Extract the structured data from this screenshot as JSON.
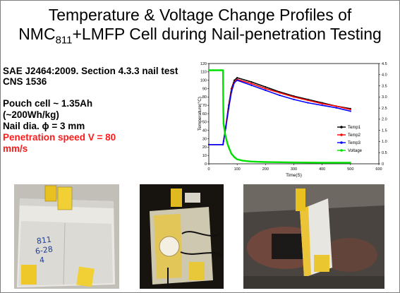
{
  "slide": {
    "title_line1": "Temperature & Voltage Change Profiles of",
    "title_line2_pre": "NMC",
    "title_line2_sub": "811",
    "title_line2_post": "+LMFP Cell during Nail-penetration Testing"
  },
  "info": {
    "standard1": "SAE J2464:2009. Section 4.3.3 nail test",
    "standard2": "CNS 1536",
    "cell1": "Pouch cell ~ 1.35Ah",
    "cell2": "(~200Wh/kg)",
    "nail": "Nail dia. ϕ  = 3 mm",
    "speed1": "Penetration speed V = 80",
    "speed2": "mm/s"
  },
  "photos": {
    "cell_handwriting": [
      "811",
      "6-28",
      "4"
    ]
  },
  "colors": {
    "temp1": "#000000",
    "temp2": "#ff0000",
    "temp3": "#0000ff",
    "voltage": "#00e000"
  },
  "chart_data": {
    "type": "line",
    "xlabel": "Time(S)",
    "ylabel": "Temperature(°C)",
    "xlim": [
      0,
      600
    ],
    "ylim": [
      0,
      120
    ],
    "y2lim": [
      0,
      4.5
    ],
    "x_ticks": [
      "0",
      "100",
      "200",
      "300",
      "400",
      "500",
      "600"
    ],
    "y_ticks": [
      "0",
      "10",
      "20",
      "30",
      "40",
      "50",
      "60",
      "70",
      "80",
      "90",
      "100",
      "110",
      "120"
    ],
    "y2_ticks": [
      "0",
      "0.5",
      "1.0",
      "1.5",
      "2.0",
      "2.5",
      "3.0",
      "3.5",
      "4.0",
      "4.5"
    ],
    "legend_position": "bottom-right",
    "series": [
      {
        "name": "Temp1",
        "axis": "left",
        "color": "#000000",
        "x": [
          0,
          50,
          52,
          60,
          70,
          80,
          90,
          100,
          150,
          200,
          250,
          300,
          350,
          400,
          450,
          500
        ],
        "y": [
          23,
          23,
          27,
          45,
          70,
          90,
          100,
          103,
          98,
          92,
          86,
          81,
          77,
          73,
          69,
          66
        ]
      },
      {
        "name": "Temp2",
        "axis": "left",
        "color": "#ff0000",
        "x": [
          0,
          50,
          52,
          60,
          70,
          80,
          90,
          100,
          150,
          200,
          250,
          300,
          350,
          400,
          450,
          500
        ],
        "y": [
          23,
          23,
          27,
          45,
          68,
          88,
          98,
          101,
          96,
          90,
          85,
          80,
          76,
          72,
          69,
          65
        ]
      },
      {
        "name": "Temp3",
        "axis": "left",
        "color": "#0000ff",
        "x": [
          0,
          50,
          52,
          60,
          70,
          80,
          90,
          100,
          150,
          200,
          250,
          300,
          350,
          400,
          450,
          500
        ],
        "y": [
          23,
          23,
          27,
          43,
          66,
          86,
          97,
          100,
          94,
          88,
          82,
          77,
          73,
          70,
          67,
          63
        ]
      },
      {
        "name": "Voltage",
        "axis": "right",
        "color": "#00e000",
        "x": [
          0,
          50,
          51,
          52,
          55,
          58,
          62,
          66,
          70,
          75,
          80,
          90,
          100,
          120,
          150,
          200,
          300,
          400,
          500
        ],
        "y": [
          4.2,
          4.2,
          2.5,
          1.8,
          1.55,
          1.3,
          1.1,
          0.9,
          0.75,
          0.6,
          0.45,
          0.3,
          0.2,
          0.14,
          0.1,
          0.08,
          0.06,
          0.05,
          0.05
        ]
      }
    ]
  }
}
